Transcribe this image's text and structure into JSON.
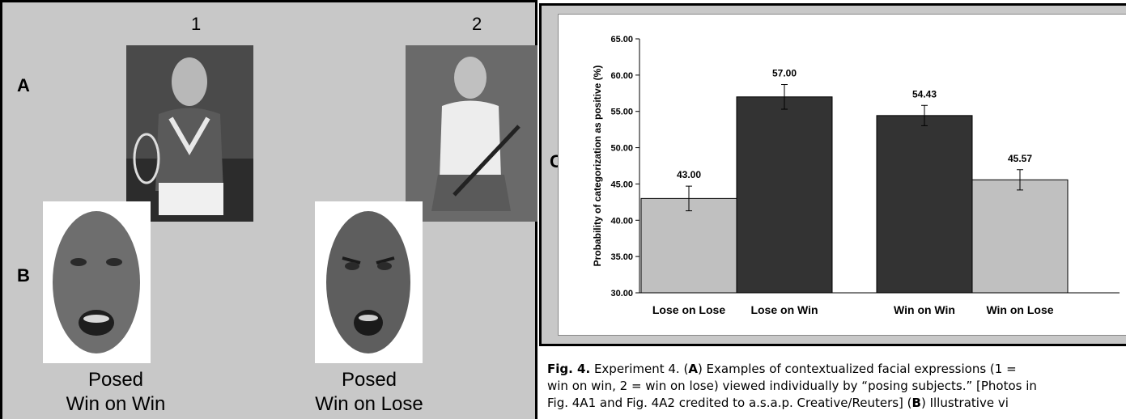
{
  "panel_a_b": {
    "columns": [
      "1",
      "2"
    ],
    "rows": [
      "A",
      "B"
    ],
    "captions": [
      [
        "Posed",
        "Win on Win"
      ],
      [
        "Posed",
        "Win on Lose"
      ]
    ]
  },
  "panel_c": {
    "letter": "C"
  },
  "chart_data": {
    "type": "bar",
    "ylabel": "Probability of categorization as positive (%)",
    "ylim": [
      30,
      65
    ],
    "yticks": [
      "30.00",
      "35.00",
      "40.00",
      "45.00",
      "50.00",
      "55.00",
      "60.00",
      "65.00"
    ],
    "categories": [
      "Lose on Lose",
      "Lose on Win",
      "Win on Win",
      "Win on Lose"
    ],
    "values": [
      43.0,
      57.0,
      54.43,
      45.57
    ],
    "value_labels": [
      "43.00",
      "57.00",
      "54.43",
      "45.57"
    ],
    "errors": [
      1.7,
      1.7,
      1.4,
      1.4
    ],
    "colors": [
      "#c0c0c0",
      "#333333",
      "#333333",
      "#c0c0c0"
    ],
    "grid": false,
    "legend": "none"
  },
  "caption": {
    "fig_label": "Fig. 4.",
    "line1_a": " Experiment 4. (",
    "line1_b": "A",
    "line1_c": ") Examples of contextualized facial expressions (1 =",
    "line2": "win on win, 2 = win on lose) viewed individually by “posing subjects.” [Photos in",
    "line3_a": "Fig. 4A1 and Fig. 4A2 credited to a.s.a.p. Creative/Reuters] (",
    "line3_b": "B",
    "line3_c": ") Illustrative vi"
  }
}
